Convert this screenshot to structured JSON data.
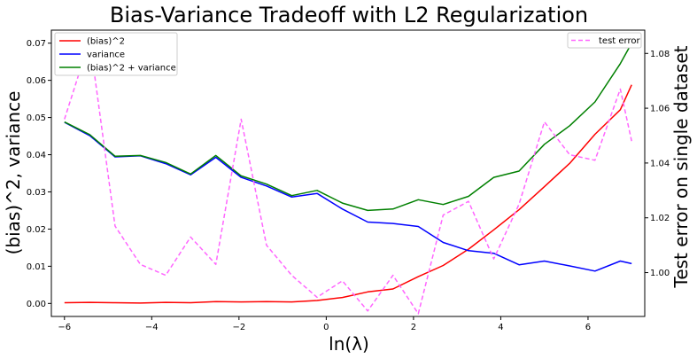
{
  "chart_data": {
    "type": "line",
    "title": "Bias-Variance Tradeoff with L2 Regularization",
    "xlabel": "ln(λ)",
    "ylabel_left": "(bias)^2, variance",
    "ylabel_right": "Test error on single dataset",
    "xlim": [
      -6.3,
      7.3
    ],
    "ylim_left": [
      -0.0035,
      0.0735
    ],
    "ylim_right": [
      0.984,
      1.0885
    ],
    "x_ticks": [
      -6,
      -4,
      -2,
      0,
      2,
      4,
      6
    ],
    "x_tick_labels": [
      "−6",
      "−4",
      "−2",
      "0",
      "2",
      "4",
      "6"
    ],
    "y_left_ticks": [
      0.0,
      0.01,
      0.02,
      0.03,
      0.04,
      0.05,
      0.06,
      0.07
    ],
    "y_left_tick_labels": [
      "0.00",
      "0.01",
      "0.02",
      "0.03",
      "0.04",
      "0.05",
      "0.06",
      "0.07"
    ],
    "y_right_ticks": [
      1.0,
      1.02,
      1.04,
      1.06,
      1.08
    ],
    "y_right_tick_labels": [
      "1.00",
      "1.02",
      "1.04",
      "1.06",
      "1.08"
    ],
    "grid": false,
    "x": [
      -6.0,
      -5.42,
      -4.84,
      -4.26,
      -3.68,
      -3.11,
      -2.53,
      -1.95,
      -1.37,
      -0.79,
      -0.21,
      0.37,
      0.95,
      1.53,
      2.11,
      2.68,
      3.26,
      3.84,
      4.42,
      5.0,
      5.58,
      6.16,
      6.74,
      7.0
    ],
    "series": [
      {
        "name": "(bias)^2",
        "axis": "left",
        "color": "#ff0000",
        "dashed": false,
        "x": [
          -6.0,
          -5.42,
          -4.84,
          -4.26,
          -3.68,
          -3.11,
          -2.53,
          -1.95,
          -1.37,
          -0.79,
          -0.21,
          0.37,
          0.95,
          1.53,
          2.11,
          2.68,
          3.26,
          3.84,
          4.42,
          5.0,
          5.58,
          6.16,
          6.74,
          7.0
        ],
        "values": [
          0.0002,
          0.0003,
          0.0002,
          0.0001,
          0.0003,
          0.0002,
          0.0005,
          0.0004,
          0.0005,
          0.0004,
          0.0008,
          0.0016,
          0.0031,
          0.0039,
          0.0072,
          0.0102,
          0.0146,
          0.0198,
          0.0252,
          0.0314,
          0.0377,
          0.0455,
          0.0521,
          0.0588
        ]
      },
      {
        "name": "variance",
        "axis": "left",
        "color": "#0000ff",
        "dashed": false,
        "x": [
          -6.0,
          -5.42,
          -4.84,
          -4.26,
          -3.68,
          -3.11,
          -2.53,
          -1.95,
          -1.37,
          -0.79,
          -0.21,
          0.37,
          0.95,
          1.53,
          2.11,
          2.68,
          3.26,
          3.84,
          4.42,
          5.0,
          5.58,
          6.16,
          6.74,
          7.0
        ],
        "values": [
          0.0487,
          0.0451,
          0.0394,
          0.0397,
          0.0376,
          0.0346,
          0.0393,
          0.0339,
          0.0316,
          0.0286,
          0.0296,
          0.0254,
          0.0219,
          0.0215,
          0.0207,
          0.0164,
          0.0142,
          0.0135,
          0.0104,
          0.0114,
          0.0101,
          0.0087,
          0.0114,
          0.0107
        ]
      },
      {
        "name": "(bias)^2 + variance",
        "axis": "left",
        "color": "#008000",
        "dashed": false,
        "x": [
          -6.0,
          -5.42,
          -4.84,
          -4.26,
          -3.68,
          -3.11,
          -2.53,
          -1.95,
          -1.37,
          -0.79,
          -0.21,
          0.37,
          0.95,
          1.53,
          2.11,
          2.68,
          3.26,
          3.84,
          4.42,
          5.0,
          5.58,
          6.16,
          6.74,
          7.0
        ],
        "values": [
          0.0488,
          0.0454,
          0.0396,
          0.0398,
          0.0379,
          0.0348,
          0.0398,
          0.0343,
          0.0321,
          0.029,
          0.0304,
          0.027,
          0.025,
          0.0254,
          0.0279,
          0.0266,
          0.0288,
          0.0339,
          0.0356,
          0.0428,
          0.0478,
          0.0542,
          0.0645,
          0.07
        ]
      },
      {
        "name": "test error",
        "axis": "right",
        "color": "#ff66ff",
        "dashed": true,
        "x": [
          -6.0,
          -5.42,
          -4.84,
          -4.26,
          -3.68,
          -3.11,
          -2.53,
          -1.95,
          -1.37,
          -0.79,
          -0.21,
          0.37,
          0.95,
          1.53,
          2.11,
          2.68,
          3.26,
          3.84,
          4.42,
          5.0,
          5.58,
          6.16,
          6.74,
          7.0
        ],
        "values": [
          1.056,
          1.085,
          1.017,
          1.003,
          0.999,
          1.013,
          1.003,
          1.056,
          1.01,
          0.999,
          0.991,
          0.997,
          0.986,
          0.999,
          0.985,
          1.021,
          1.026,
          1.005,
          1.025,
          1.055,
          1.043,
          1.041,
          1.067,
          1.048
        ]
      }
    ],
    "legend_left": {
      "location": "upper-left",
      "entries": [
        "(bias)^2",
        "variance",
        "(bias)^2 + variance"
      ]
    },
    "legend_right": {
      "location": "upper-right",
      "entries": [
        "test error"
      ]
    }
  }
}
